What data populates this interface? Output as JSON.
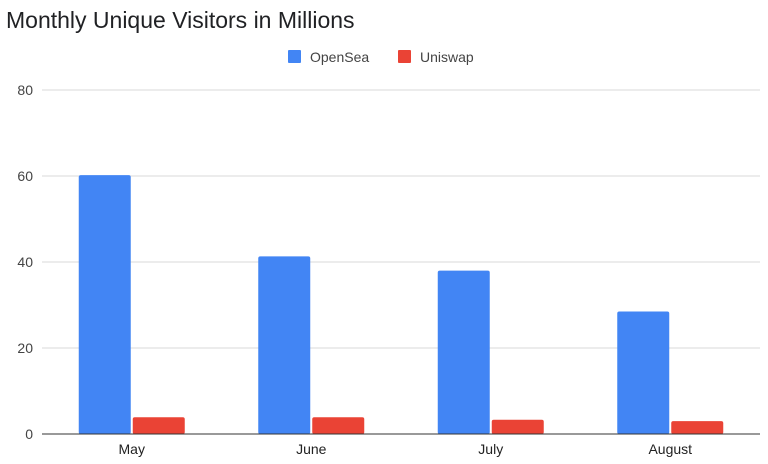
{
  "chart_data": {
    "type": "bar",
    "title": "Monthly Unique Visitors in Millions",
    "categories": [
      "May",
      "June",
      "July",
      "August"
    ],
    "series": [
      {
        "name": "OpenSea",
        "color": "#4285f4",
        "values": [
          60.2,
          41.3,
          38.0,
          28.5
        ]
      },
      {
        "name": "Uniswap",
        "color": "#ea4335",
        "values": [
          3.9,
          3.9,
          3.3,
          3.0
        ]
      }
    ],
    "ylim": [
      0,
      80
    ],
    "yticks": [
      0,
      20,
      40,
      60,
      80
    ],
    "grid": true,
    "legend_position": "top-center",
    "xlabel": "",
    "ylabel": ""
  }
}
